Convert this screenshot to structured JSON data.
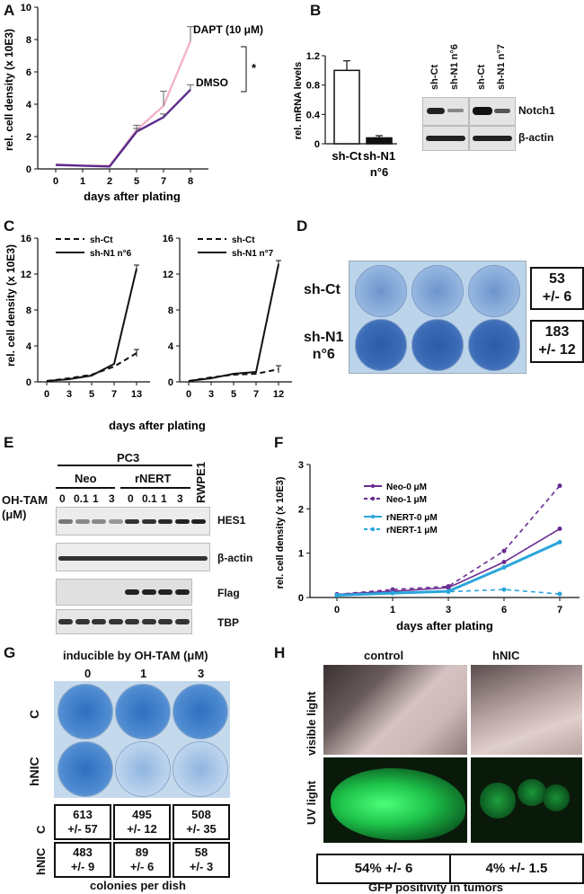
{
  "panels": {
    "A": {
      "label": "A",
      "chart_data": {
        "type": "line",
        "ylabel": "rel. cell density (x 10E3)",
        "xlabel": "days after plating",
        "x": [
          0,
          1,
          2,
          5,
          7,
          8
        ],
        "xticks": [
          "0",
          "1",
          "2",
          "5",
          "7",
          "8"
        ],
        "yticks": [
          "0",
          "2",
          "4",
          "6",
          "8",
          "10"
        ],
        "ylim": [
          0,
          10
        ],
        "series": [
          {
            "name": "DAPT (10 μM)",
            "color": "#f2b3c9",
            "values": [
              0.25,
              0.2,
              0.2,
              2.4,
              3.9,
              7.9
            ],
            "err": [
              0,
              0,
              0,
              0.3,
              0.9,
              0.9
            ]
          },
          {
            "name": "DMSO",
            "color": "#5b2a8c",
            "values": [
              0.25,
              0.2,
              0.15,
              2.3,
              3.2,
              4.9
            ],
            "err": [
              0,
              0,
              0,
              0.2,
              0.2,
              0.3
            ]
          }
        ],
        "annotation": "*"
      }
    },
    "B": {
      "label": "B",
      "chart_data": {
        "type": "bar",
        "ylabel": "rel. mRNA levels",
        "categories": [
          "sh-Ct",
          "sh-N1 n°6"
        ],
        "cat_line1": [
          "sh-Ct",
          "sh-N1"
        ],
        "cat_line2": [
          "",
          "n°6"
        ],
        "values": [
          1.0,
          0.08
        ],
        "err": [
          0.13,
          0.03
        ],
        "ylim": [
          0,
          1.2
        ],
        "yticks": [
          "0",
          "0.4",
          "0.8",
          "1.2"
        ]
      },
      "blot_lanes": [
        "sh-Ct",
        "sh-N1 n°6",
        "sh-Ct",
        "sh-N1 n°7"
      ],
      "blot_labels": [
        "Notch1",
        "β-actin"
      ]
    },
    "C": {
      "label": "C",
      "ylabel": "rel. cell density (x 10E3)",
      "xlabel": "days after plating",
      "chart_data": [
        {
          "type": "line",
          "x": [
            0,
            3,
            5,
            7,
            13
          ],
          "xticks": [
            "0",
            "3",
            "5",
            "7",
            "13"
          ],
          "yticks": [
            "0",
            "4",
            "8",
            "12",
            "16"
          ],
          "ylim": [
            0,
            16
          ],
          "series": [
            {
              "name": "sh-Ct",
              "style": "dashed",
              "values": [
                0.1,
                0.4,
                0.8,
                1.7,
                3.2
              ]
            },
            {
              "name": "sh-N1 n°6",
              "style": "solid",
              "values": [
                0.1,
                0.3,
                0.7,
                2.0,
                12.6
              ]
            }
          ]
        },
        {
          "type": "line",
          "x": [
            0,
            3,
            5,
            7,
            12
          ],
          "xticks": [
            "0",
            "3",
            "5",
            "7",
            "12"
          ],
          "yticks": [
            "0",
            "4",
            "8",
            "12",
            "16"
          ],
          "ylim": [
            0,
            16
          ],
          "series": [
            {
              "name": "sh-Ct",
              "style": "dashed",
              "values": [
                0.1,
                0.5,
                0.8,
                0.9,
                1.4
              ]
            },
            {
              "name": "sh-N1 n°7",
              "style": "solid",
              "values": [
                0.1,
                0.4,
                0.9,
                1.1,
                13.1
              ]
            }
          ]
        }
      ]
    },
    "D": {
      "label": "D",
      "row_labels": [
        "sh-Ct",
        "sh-N1\nn°6"
      ],
      "counts": [
        "53\n+/- 6",
        "183\n+/- 12"
      ]
    },
    "E": {
      "label": "E",
      "top_header": "PC3",
      "groups": [
        "Neo",
        "rNERT"
      ],
      "side_lane": "RWPE1",
      "treatment_label": "OH-TAM\n(μM)",
      "doses": [
        "0",
        "0.1",
        "1",
        "3",
        "0",
        "0.1",
        "1",
        "3"
      ],
      "blot_labels": [
        "HES1",
        "β-actin",
        "Flag",
        "TBP"
      ]
    },
    "F": {
      "label": "F",
      "chart_data": {
        "type": "line",
        "ylabel": "rel. cell density (x 10E3)",
        "xlabel": "days after plating",
        "x": [
          0,
          1,
          3,
          6,
          7
        ],
        "xticks": [
          "0",
          "1",
          "3",
          "6",
          "7"
        ],
        "yticks": [
          "0",
          "1",
          "2",
          "3"
        ],
        "ylim": [
          0,
          3
        ],
        "series": [
          {
            "name": "Neo-0 μM",
            "color": "#6a2c91",
            "style": "solid",
            "values": [
              0.07,
              0.14,
              0.22,
              0.8,
              1.55
            ]
          },
          {
            "name": "Neo-1 μM",
            "color": "#6a2c91",
            "style": "dashed",
            "values": [
              0.07,
              0.18,
              0.25,
              1.05,
              2.52
            ]
          },
          {
            "name": "rNERT-0 μM",
            "color": "#2aa6dc",
            "style": "solid",
            "values": [
              0.05,
              0.1,
              0.14,
              0.68,
              1.25
            ]
          },
          {
            "name": "rNERT-1 μM",
            "color": "#2aa6dc",
            "style": "dashed",
            "values": [
              0.05,
              0.1,
              0.13,
              0.18,
              0.08
            ]
          }
        ]
      }
    },
    "G": {
      "label": "G",
      "header": "inducible by OH-TAM (μM)",
      "doses": [
        "0",
        "1",
        "3"
      ],
      "row_labels": [
        "C",
        "hNIC"
      ],
      "counts": [
        [
          "613\n+/- 57",
          "495\n+/- 12",
          "508\n+/- 35"
        ],
        [
          "483\n+/- 9",
          "89\n+/- 6",
          "58\n+/- 3"
        ]
      ],
      "caption": "colonies per dish"
    },
    "H": {
      "label": "H",
      "columns": [
        "control",
        "hNIC"
      ],
      "row_labels": [
        "visible light",
        "UV light"
      ],
      "values": [
        "54% +/- 6",
        "4% +/- 1.5"
      ],
      "caption": "GFP positivity in tumors"
    }
  }
}
